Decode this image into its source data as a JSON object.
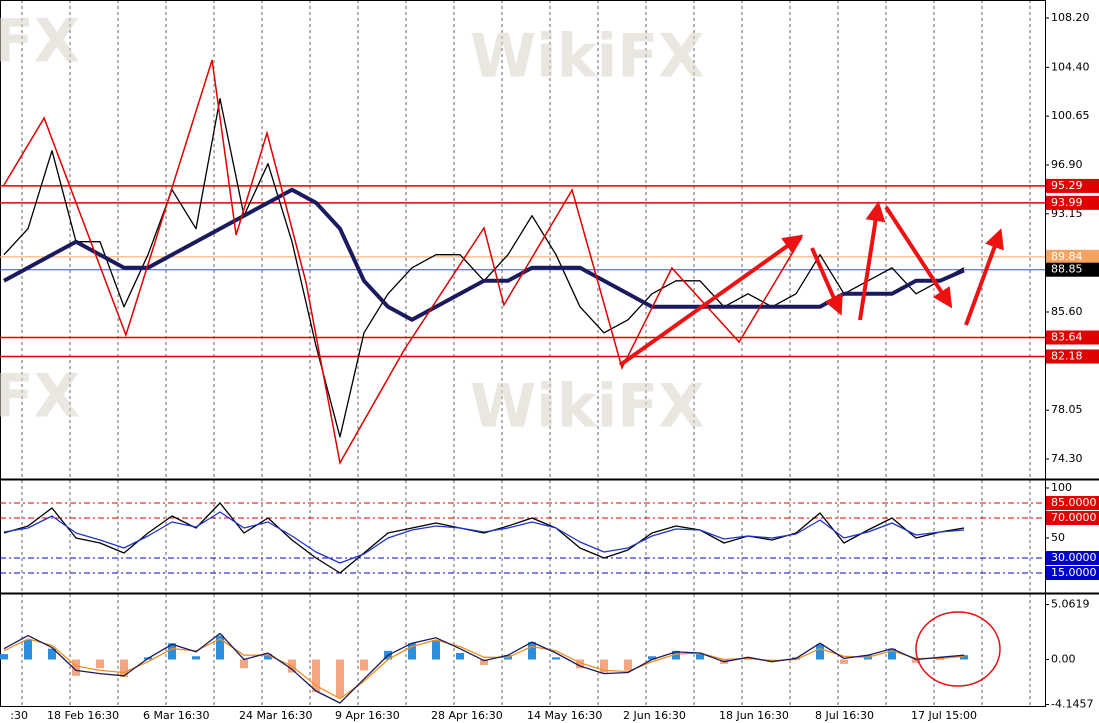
{
  "chart_data": [
    {
      "type": "line",
      "ylim": [
        72.84,
        109.58
      ],
      "yticks": [
        {
          "value": 108.2,
          "label": "108.20"
        },
        {
          "value": 104.4,
          "label": "104.40"
        },
        100.65,
        {
          "value": 96.9,
          "label": "96.90"
        },
        93.15,
        {
          "value": 85.6,
          "label": "85.60"
        },
        78.05,
        {
          "value": 74.3,
          "label": "74.30"
        }
      ],
      "levels": [
        95.29,
        93.99,
        89.84,
        88.85,
        83.64,
        82.18
      ],
      "level_colors": [
        "#e00000",
        "#e00000",
        "#f4a460",
        "#000000",
        "#e00000",
        "#e00000"
      ],
      "level_line_colors": [
        "#e00000",
        "#e00000",
        "#f4a460",
        "#3355cc",
        "#e00000",
        "#e00000"
      ],
      "series": [
        {
          "color": "#000000",
          "values": [
            90,
            92,
            98,
            91,
            91,
            86,
            90,
            95,
            92,
            102,
            93,
            97,
            91,
            83,
            76,
            84,
            87,
            89,
            90,
            90,
            88,
            90,
            93,
            90,
            86,
            84,
            85,
            87,
            88,
            88,
            86,
            87,
            86,
            87,
            90,
            87,
            88,
            89,
            87,
            88,
            89
          ]
        },
        {
          "color": "#1a1a5e",
          "values": [
            88,
            89,
            90,
            91,
            90,
            89,
            89,
            90,
            91,
            92,
            93,
            94,
            95,
            94,
            92,
            88,
            86,
            85,
            86,
            87,
            88,
            88,
            89,
            89,
            89,
            88,
            87,
            86,
            86,
            86,
            86,
            86,
            86,
            86,
            86,
            87,
            87,
            87,
            88,
            88,
            88.8
          ]
        }
      ],
      "zigzag": {
        "color": "#e00000",
        "x": [
          0,
          1.67,
          5.08,
          8.67,
          9.67,
          10.96,
          12.58,
          14.0,
          16.67,
          20.0,
          20.83,
          23.67,
          25.75,
          27.83,
          30.63,
          33.25
        ],
        "values": [
          95.36,
          100.51,
          83.83,
          104.97,
          91.52,
          99.36,
          87.91,
          74.0,
          82.68,
          92.06,
          86.14,
          94.98,
          81.3,
          88.98,
          83.29,
          91.36
        ]
      },
      "watermark": "WikiFX"
    },
    {
      "type": "line",
      "ylim": [
        -4,
        107
      ],
      "yticks": [
        100,
        50
      ],
      "levels": [
        {
          "value": 85,
          "label": "85.0000"
        },
        {
          "value": 70,
          "label": "70.0000"
        },
        {
          "value": 30,
          "label": "30.0000"
        },
        {
          "value": 15,
          "label": "15.0000"
        }
      ],
      "level_colors": [
        "#e00000",
        "#e00000",
        "#0000cc",
        "#0000cc"
      ],
      "level_line_colors": [
        "#e00000",
        "#e00000",
        "#0000cc",
        "#0000cc"
      ],
      "series": [
        {
          "color": "#000000",
          "values": [
            55,
            62,
            80,
            50,
            45,
            35,
            55,
            72,
            60,
            85,
            55,
            70,
            48,
            30,
            15,
            35,
            55,
            60,
            65,
            60,
            55,
            62,
            70,
            60,
            40,
            30,
            38,
            55,
            62,
            58,
            45,
            52,
            48,
            55,
            75,
            45,
            58,
            70,
            50,
            56,
            60
          ]
        },
        {
          "color": "#2233cc",
          "values": [
            56,
            60,
            72,
            55,
            48,
            40,
            52,
            66,
            61,
            76,
            60,
            66,
            52,
            36,
            25,
            34,
            50,
            58,
            62,
            60,
            56,
            60,
            66,
            60,
            46,
            36,
            40,
            52,
            59,
            58,
            49,
            52,
            50,
            54,
            68,
            50,
            56,
            65,
            53,
            56,
            58
          ]
        }
      ]
    },
    {
      "type": "bar",
      "ylim": [
        -4.28,
        5.94
      ],
      "yticks": [
        5.0619,
        {
          "value": 0,
          "label": "0.00"
        },
        -4.1457
      ],
      "values": [
        0.5,
        1.8,
        1.0,
        -1.5,
        -0.8,
        -1.6,
        0.2,
        1.5,
        0.3,
        2.2,
        -0.8,
        0.5,
        -1.2,
        -3.0,
        -3.5,
        -1.0,
        0.8,
        1.5,
        1.8,
        0.6,
        -0.5,
        0.4,
        1.6,
        0.2,
        -0.8,
        -1.2,
        -1.0,
        0.3,
        0.8,
        0.5,
        -0.4,
        0.2,
        -0.2,
        0.2,
        1.4,
        -0.4,
        0.4,
        1.0,
        -0.3,
        0.2,
        0.4
      ],
      "colors": [
        "#2b8fde",
        "#f4a582"
      ],
      "series": [
        {
          "color": "#f0901e",
          "values": [
            0.8,
            1.9,
            1.3,
            -0.6,
            -1.0,
            -1.2,
            -0.2,
            1.0,
            0.8,
            1.9,
            0.4,
            0.4,
            -0.6,
            -2.4,
            -3.6,
            -2.0,
            0.0,
            1.2,
            1.8,
            1.2,
            0.2,
            0.2,
            1.2,
            0.8,
            -0.3,
            -1.0,
            -1.1,
            -0.2,
            0.5,
            0.6,
            0.0,
            0.1,
            -0.1,
            0.0,
            1.0,
            0.3,
            0.2,
            0.8,
            0.1,
            0.1,
            0.3
          ]
        },
        {
          "color": "#1a1a5e",
          "values": [
            1.0,
            2.2,
            1.1,
            -1.0,
            -1.3,
            -1.5,
            0.1,
            1.4,
            0.7,
            2.4,
            0.0,
            0.6,
            -0.9,
            -2.9,
            -4.0,
            -1.8,
            0.4,
            1.5,
            2.0,
            1.0,
            -0.1,
            0.4,
            1.6,
            0.6,
            -0.6,
            -1.3,
            -1.2,
            0.0,
            0.7,
            0.6,
            -0.2,
            0.2,
            -0.2,
            0.1,
            1.5,
            0.1,
            0.4,
            1.0,
            0.0,
            0.2,
            0.4
          ]
        }
      ],
      "x_labels": [
        ":30",
        "18 Feb 16:30",
        "6 Mar 16:30",
        "24 Mar 16:30",
        "9 Apr 16:30",
        "28 Apr 16:30",
        "14 May 16:30",
        "2 Jun 16:30",
        "18 Jun 16:30",
        "8 Jul 16:30",
        "17 Jul 15:00"
      ]
    }
  ]
}
